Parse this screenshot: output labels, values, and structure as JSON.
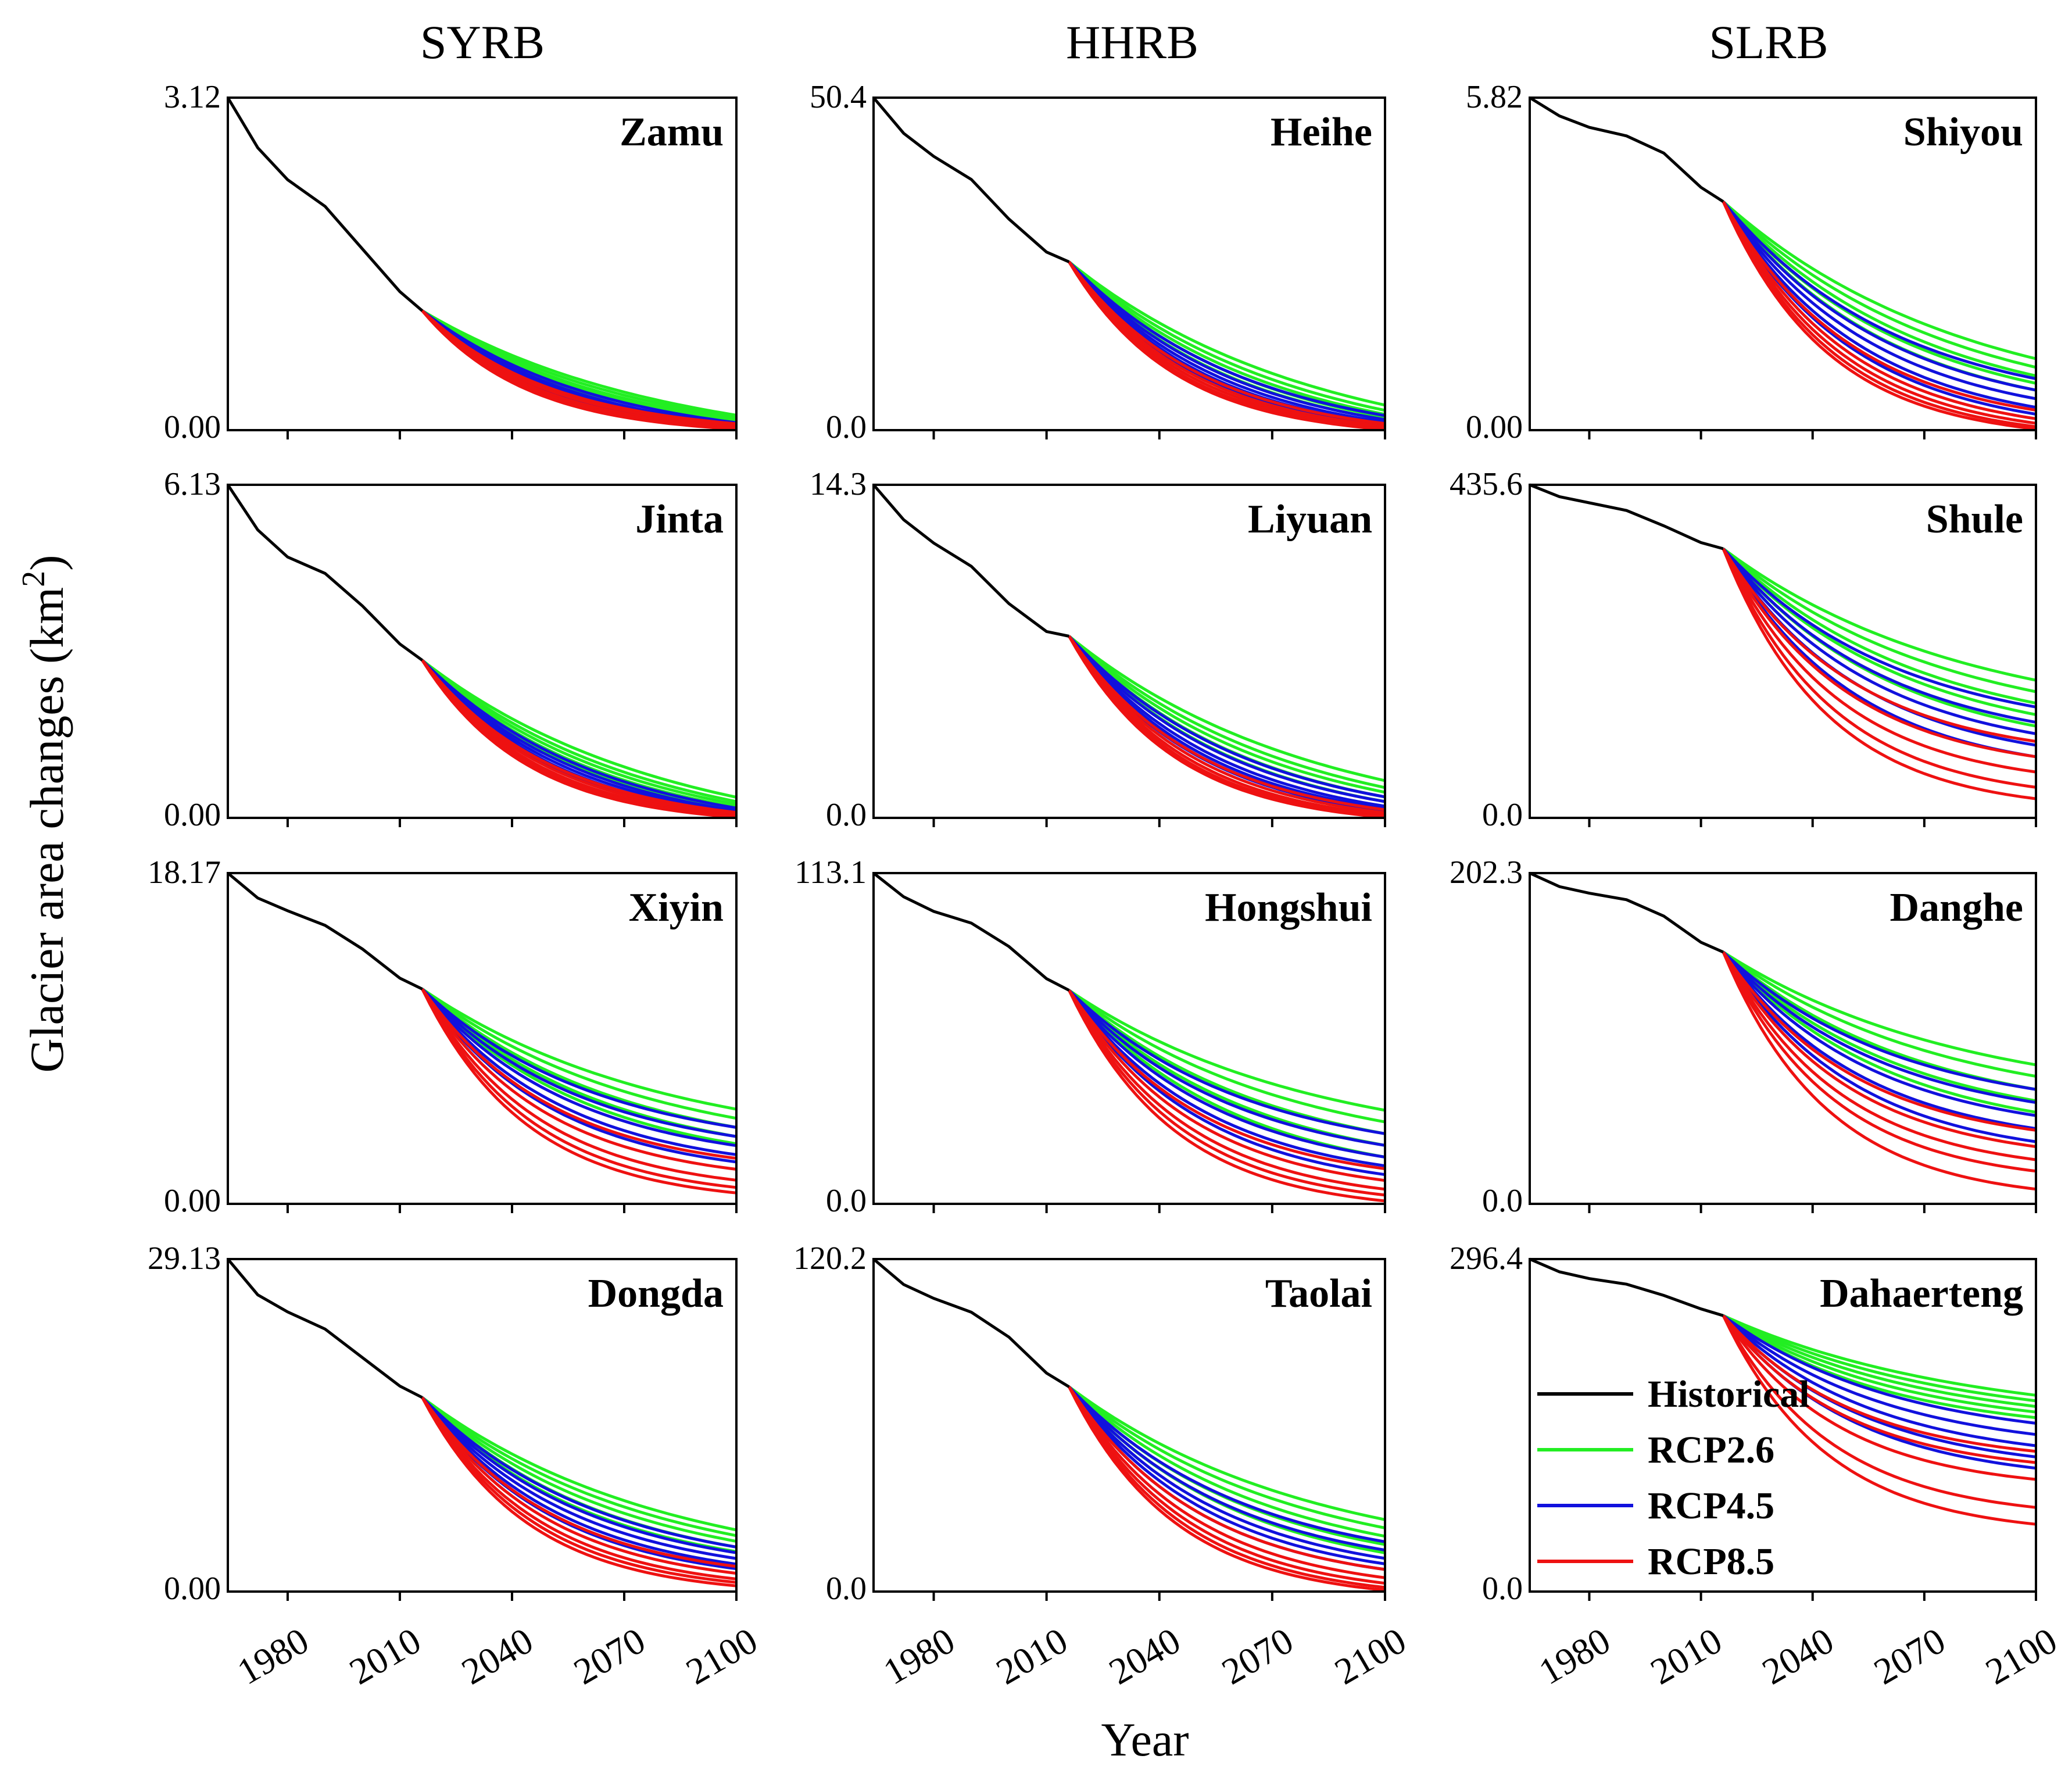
{
  "figure": {
    "column_titles": [
      "SYRB",
      "HHRB",
      "SLRB"
    ],
    "ylabel": "Glacier area changes (km",
    "ylabel_sup": "2",
    "ylabel_close": ")",
    "xlabel": "Year",
    "x_ticks": [
      "1980",
      "2010",
      "2040",
      "2070",
      "2100"
    ]
  },
  "legend": {
    "placement": "inside lower-left of Dahaerteng panel",
    "entries": [
      {
        "label": "Historical",
        "color": "#000000"
      },
      {
        "label": "RCP2.6",
        "color": "#22ee22"
      },
      {
        "label": "RCP4.5",
        "color": "#1111dd"
      },
      {
        "label": "RCP8.5",
        "color": "#ee1111"
      }
    ]
  },
  "chart_data": [
    {
      "type": "line",
      "title": "Zamu",
      "basin": "SYRB",
      "ylim": [
        0,
        3.12
      ],
      "y_ticks": [
        "3.12",
        "0.00"
      ],
      "xlim": [
        1964,
        2100
      ],
      "historical": {
        "x": [
          1964,
          1972,
          1980,
          1990,
          2000,
          2010,
          2016
        ],
        "y": [
          3.12,
          2.65,
          2.35,
          2.1,
          1.7,
          1.3,
          1.12
        ]
      },
      "proj_start": [
        2016,
        1.12
      ],
      "rcp26_end": [
        0.14,
        0.12,
        0.1,
        0.09,
        0.08
      ],
      "rcp45_end": [
        0.07,
        0.05,
        0.04,
        0.03,
        0.02
      ],
      "rcp85_end": [
        0.06,
        0.05,
        0.03,
        0.02,
        0.01
      ]
    },
    {
      "type": "line",
      "title": "Heihe",
      "basin": "HHRB",
      "ylim": [
        0,
        50.4
      ],
      "y_ticks": [
        "50.4",
        "0.0"
      ],
      "xlim": [
        1964,
        2100
      ],
      "historical": {
        "x": [
          1964,
          1972,
          1980,
          1990,
          2000,
          2010,
          2016
        ],
        "y": [
          50.4,
          45.0,
          41.5,
          38.0,
          32.0,
          27.0,
          25.5
        ]
      },
      "proj_start": [
        2016,
        25.5
      ],
      "rcp26_end": [
        3.8,
        3.0,
        2.4,
        2.0,
        1.6
      ],
      "rcp45_end": [
        2.2,
        1.6,
        1.2,
        0.9,
        0.6
      ],
      "rcp85_end": [
        1.0,
        0.6,
        0.4,
        0.2,
        0.1
      ]
    },
    {
      "type": "line",
      "title": "Shiyou",
      "basin": "SLRB",
      "ylim": [
        0,
        5.82
      ],
      "y_ticks": [
        "5.82",
        "0.00"
      ],
      "xlim": [
        1964,
        2100
      ],
      "historical": {
        "x": [
          1964,
          1972,
          1980,
          1990,
          2000,
          2010,
          2016
        ],
        "y": [
          5.82,
          5.5,
          5.3,
          5.15,
          4.85,
          4.25,
          4.0
        ]
      },
      "proj_start": [
        2016,
        4.0
      ],
      "rcp26_end": [
        1.25,
        1.1,
        0.95,
        0.82,
        0.7
      ],
      "rcp45_end": [
        0.9,
        0.7,
        0.55,
        0.4,
        0.28
      ],
      "rcp85_end": [
        0.35,
        0.2,
        0.12,
        0.06,
        0.02
      ]
    },
    {
      "type": "line",
      "title": "Jinta",
      "basin": "SYRB",
      "ylim": [
        0,
        6.13
      ],
      "y_ticks": [
        "6.13",
        "0.00"
      ],
      "xlim": [
        1964,
        2100
      ],
      "historical": {
        "x": [
          1964,
          1972,
          1980,
          1990,
          2000,
          2010,
          2016
        ],
        "y": [
          6.13,
          5.3,
          4.8,
          4.5,
          3.9,
          3.2,
          2.9
        ]
      },
      "proj_start": [
        2016,
        2.9
      ],
      "rcp26_end": [
        0.38,
        0.3,
        0.25,
        0.2,
        0.15
      ],
      "rcp45_end": [
        0.18,
        0.13,
        0.1,
        0.07,
        0.05
      ],
      "rcp85_end": [
        0.1,
        0.07,
        0.04,
        0.02,
        0.01
      ]
    },
    {
      "type": "line",
      "title": "Liyuan",
      "basin": "HHRB",
      "ylim": [
        0,
        14.3
      ],
      "y_ticks": [
        "14.3",
        "0.0"
      ],
      "xlim": [
        1964,
        2100
      ],
      "historical": {
        "x": [
          1964,
          1972,
          1980,
          1990,
          2000,
          2010,
          2016
        ],
        "y": [
          14.3,
          12.8,
          11.8,
          10.8,
          9.2,
          8.0,
          7.8
        ]
      },
      "proj_start": [
        2016,
        7.8
      ],
      "rcp26_end": [
        1.6,
        1.3,
        1.1,
        0.9,
        0.7
      ],
      "rcp45_end": [
        0.9,
        0.7,
        0.5,
        0.4,
        0.3
      ],
      "rcp85_end": [
        0.35,
        0.22,
        0.12,
        0.06,
        0.02
      ]
    },
    {
      "type": "line",
      "title": "Shule",
      "basin": "SLRB",
      "ylim": [
        0,
        435.6
      ],
      "y_ticks": [
        "435.6",
        "0.0"
      ],
      "xlim": [
        1964,
        2100
      ],
      "historical": {
        "x": [
          1964,
          1972,
          1980,
          1990,
          2000,
          2010,
          2016
        ],
        "y": [
          435.6,
          420,
          412,
          402,
          382,
          360,
          352
        ]
      },
      "proj_start": [
        2016,
        352
      ],
      "rcp26_end": [
        180,
        165,
        150,
        135,
        120
      ],
      "rcp45_end": [
        145,
        125,
        110,
        95,
        80
      ],
      "rcp85_end": [
        100,
        80,
        60,
        40,
        25
      ]
    },
    {
      "type": "line",
      "title": "Xiyin",
      "basin": "SYRB",
      "ylim": [
        0,
        18.17
      ],
      "y_ticks": [
        "18.17",
        "0.00"
      ],
      "xlim": [
        1964,
        2100
      ],
      "historical": {
        "x": [
          1964,
          1972,
          1980,
          1990,
          2000,
          2010,
          2016
        ],
        "y": [
          18.17,
          16.8,
          16.1,
          15.3,
          14.0,
          12.4,
          11.8
        ]
      },
      "proj_start": [
        2016,
        11.8
      ],
      "rcp26_end": [
        5.2,
        4.7,
        4.2,
        3.7,
        3.3
      ],
      "rcp45_end": [
        4.2,
        3.7,
        3.2,
        2.7,
        2.3
      ],
      "rcp85_end": [
        2.5,
        1.9,
        1.3,
        0.9,
        0.6
      ]
    },
    {
      "type": "line",
      "title": "Hongshui",
      "basin": "HHRB",
      "ylim": [
        0,
        113.1
      ],
      "y_ticks": [
        "113.1",
        "0.0"
      ],
      "xlim": [
        1964,
        2100
      ],
      "historical": {
        "x": [
          1964,
          1972,
          1980,
          1990,
          2000,
          2010,
          2016
        ],
        "y": [
          113.1,
          105,
          100,
          96,
          88,
          77,
          73
        ]
      },
      "proj_start": [
        2016,
        73
      ],
      "rcp26_end": [
        32,
        28,
        24,
        20,
        16
      ],
      "rcp45_end": [
        24,
        20,
        16,
        13,
        10
      ],
      "rcp85_end": [
        12,
        8,
        5,
        3,
        1
      ]
    },
    {
      "type": "line",
      "title": "Danghe",
      "basin": "SLRB",
      "ylim": [
        0,
        202.3
      ],
      "y_ticks": [
        "202.3",
        "0.0"
      ],
      "xlim": [
        1964,
        2100
      ],
      "historical": {
        "x": [
          1964,
          1972,
          1980,
          1990,
          2000,
          2010,
          2016
        ],
        "y": [
          202.3,
          194,
          190,
          186,
          176,
          160,
          154
        ]
      },
      "proj_start": [
        2016,
        154
      ],
      "rcp26_end": [
        85,
        78,
        70,
        63,
        56
      ],
      "rcp45_end": [
        70,
        62,
        54,
        46,
        38
      ],
      "rcp85_end": [
        45,
        35,
        27,
        20,
        9
      ]
    },
    {
      "type": "line",
      "title": "Dongda",
      "basin": "SYRB",
      "ylim": [
        0,
        29.13
      ],
      "y_ticks": [
        "29.13",
        "0.00"
      ],
      "xlim": [
        1964,
        2100
      ],
      "historical": {
        "x": [
          1964,
          1972,
          1980,
          1990,
          2000,
          2010,
          2016
        ],
        "y": [
          29.13,
          26.0,
          24.5,
          23.0,
          20.5,
          18.0,
          17.0
        ]
      },
      "proj_start": [
        2016,
        17.0
      ],
      "rcp26_end": [
        5.4,
        4.9,
        4.4,
        3.9,
        3.5
      ],
      "rcp45_end": [
        3.9,
        3.4,
        2.9,
        2.4,
        2.0
      ],
      "rcp85_end": [
        2.2,
        1.6,
        1.1,
        0.8,
        0.5
      ]
    },
    {
      "type": "line",
      "title": "Taolai",
      "basin": "HHRB",
      "ylim": [
        0,
        120.2
      ],
      "y_ticks": [
        "120.2",
        "0.0"
      ],
      "xlim": [
        1964,
        2100
      ],
      "historical": {
        "x": [
          1964,
          1972,
          1980,
          1990,
          2000,
          2010,
          2016
        ],
        "y": [
          120.2,
          111,
          106,
          101,
          92,
          79,
          74
        ]
      },
      "proj_start": [
        2016,
        74
      ],
      "rcp26_end": [
        26,
        23,
        20,
        17,
        14
      ],
      "rcp45_end": [
        18,
        15,
        12,
        10,
        8
      ],
      "rcp85_end": [
        8,
        5,
        3,
        1.5,
        0.5
      ]
    },
    {
      "type": "line",
      "title": "Dahaerteng",
      "basin": "SLRB",
      "ylim": [
        0,
        296.4
      ],
      "y_ticks": [
        "296.4",
        "0.0"
      ],
      "xlim": [
        1964,
        2100
      ],
      "historical": {
        "x": [
          1964,
          1972,
          1980,
          1990,
          2000,
          2010,
          2016
        ],
        "y": [
          296.4,
          285,
          279,
          274,
          264,
          252,
          246
        ]
      },
      "proj_start": [
        2016,
        246
      ],
      "rcp26_end": [
        175,
        170,
        165,
        160,
        155
      ],
      "rcp45_end": [
        150,
        140,
        130,
        120,
        110
      ],
      "rcp85_end": [
        125,
        115,
        100,
        75,
        60
      ]
    }
  ]
}
